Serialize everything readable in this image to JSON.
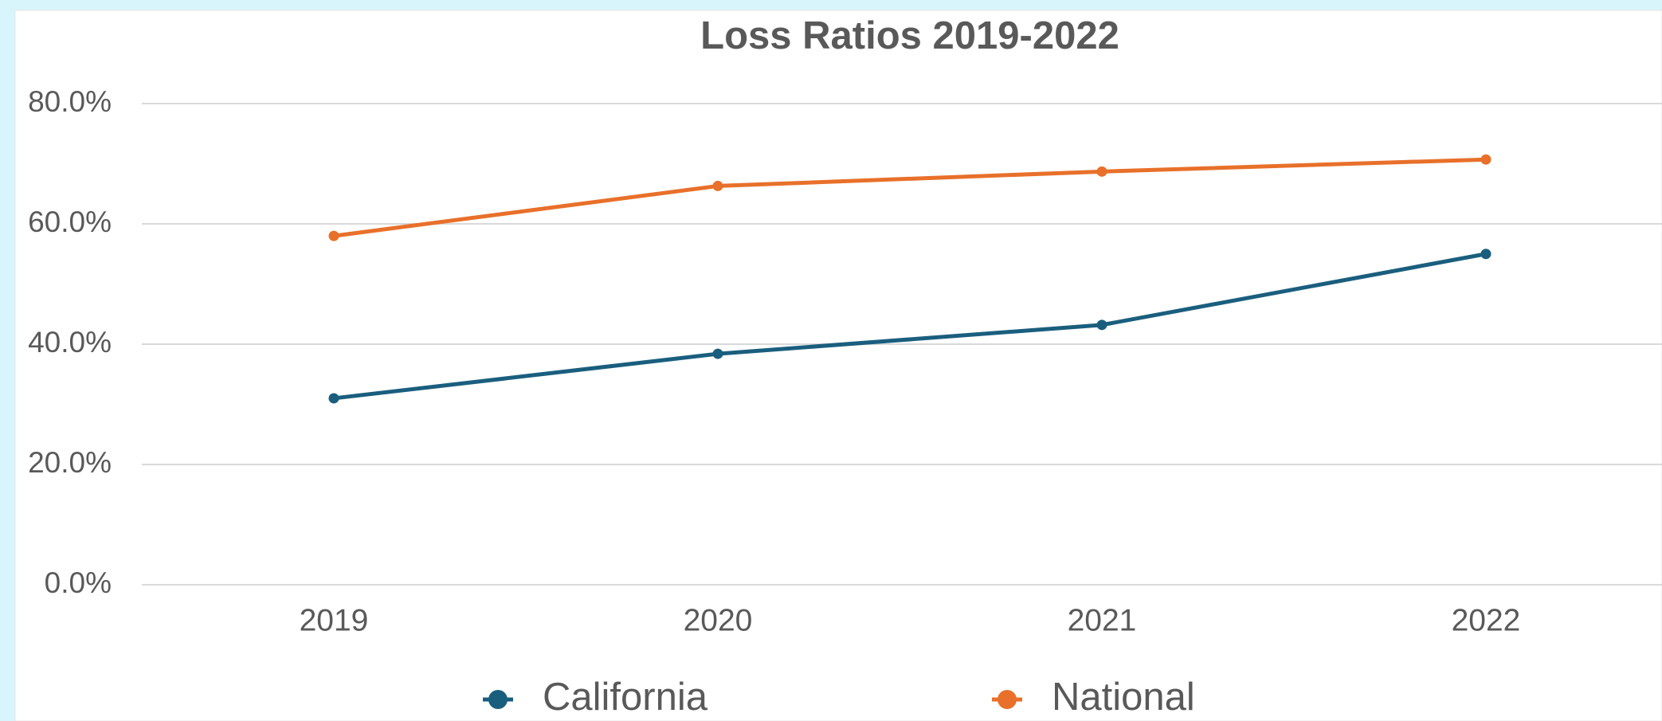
{
  "chart_data": {
    "type": "line",
    "title": "Loss Ratios 2019-2022",
    "categories": [
      "2019",
      "2020",
      "2021",
      "2022"
    ],
    "series": [
      {
        "name": "California",
        "color": "#1a5e7e",
        "values": [
          31.0,
          38.4,
          43.2,
          55.0
        ]
      },
      {
        "name": "National",
        "color": "#e8702a",
        "values": [
          58.0,
          66.3,
          68.7,
          70.7
        ]
      }
    ],
    "ylim": [
      0,
      80
    ],
    "yticks": [
      {
        "value": 0,
        "label": "0.0%"
      },
      {
        "value": 20,
        "label": "20.0%"
      },
      {
        "value": 40,
        "label": "40.0%"
      },
      {
        "value": 60,
        "label": "60.0%"
      },
      {
        "value": 80,
        "label": "80.0%"
      }
    ],
    "grid": true,
    "legend": "bottom"
  }
}
